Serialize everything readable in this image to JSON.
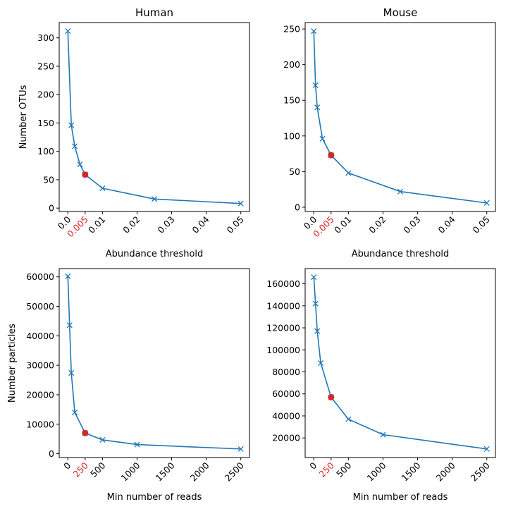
{
  "figure": {
    "background": "#ffffff"
  },
  "chart_data": [
    {
      "id": "human-threshold",
      "type": "line",
      "title": "Human",
      "xlabel": "Abundance threshold",
      "ylabel": "Number OTUs",
      "x": [
        0.0,
        0.001,
        0.002,
        0.0035,
        0.005,
        0.01,
        0.025,
        0.05
      ],
      "series": [
        {
          "values": [
            312,
            146,
            109,
            77,
            59,
            35,
            16,
            8
          ]
        }
      ],
      "highlight": {
        "x": 0.005,
        "y": 59
      },
      "xlim": [
        -0.0025,
        0.0525
      ],
      "ylim": [
        -6,
        327
      ],
      "xticks": [
        0.0,
        0.005,
        0.01,
        0.02,
        0.03,
        0.04,
        0.05
      ],
      "xtick_labels": [
        "0.0",
        "0.005",
        "0.01",
        "0.02",
        "0.03",
        "0.04",
        "0.05"
      ],
      "highlight_tick_label": "0.005",
      "yticks": [
        0,
        50,
        100,
        150,
        200,
        250,
        300
      ],
      "ytick_labels": [
        "0",
        "50",
        "100",
        "150",
        "200",
        "250",
        "300"
      ],
      "grid": false
    },
    {
      "id": "mouse-threshold",
      "type": "line",
      "title": "Mouse",
      "xlabel": "Abundance threshold",
      "ylabel": "",
      "x": [
        0.0,
        0.0005,
        0.001,
        0.0025,
        0.005,
        0.01,
        0.025,
        0.05
      ],
      "series": [
        {
          "values": [
            247,
            171,
            140,
            96,
            73,
            48,
            22,
            6
          ]
        }
      ],
      "highlight": {
        "x": 0.005,
        "y": 73
      },
      "xlim": [
        -0.0025,
        0.0525
      ],
      "ylim": [
        -6,
        259
      ],
      "xticks": [
        0.0,
        0.005,
        0.01,
        0.02,
        0.03,
        0.04,
        0.05
      ],
      "xtick_labels": [
        "0.0",
        "0.005",
        "0.01",
        "0.02",
        "0.03",
        "0.04",
        "0.05"
      ],
      "highlight_tick_label": "0.005",
      "yticks": [
        0,
        50,
        100,
        150,
        200,
        250
      ],
      "ytick_labels": [
        "0",
        "50",
        "100",
        "150",
        "200",
        "250"
      ],
      "grid": false
    },
    {
      "id": "human-reads",
      "type": "line",
      "title": "",
      "xlabel": "Min number of reads",
      "ylabel": "Number particles",
      "x": [
        0,
        25,
        50,
        100,
        250,
        500,
        1000,
        2500
      ],
      "series": [
        {
          "values": [
            60200,
            43600,
            27400,
            14000,
            7000,
            4700,
            3100,
            1600
          ]
        }
      ],
      "highlight": {
        "x": 250,
        "y": 7000
      },
      "xlim": [
        -125,
        2625
      ],
      "ylim": [
        -1300,
        62800
      ],
      "xticks": [
        0,
        250,
        500,
        1000,
        1500,
        2000,
        2500
      ],
      "xtick_labels": [
        "0",
        "250",
        "500",
        "1000",
        "1500",
        "2000",
        "2500"
      ],
      "highlight_tick_label": "250",
      "yticks": [
        0,
        10000,
        20000,
        30000,
        40000,
        50000,
        60000
      ],
      "ytick_labels": [
        "0",
        "10000",
        "20000",
        "30000",
        "40000",
        "50000",
        "60000"
      ],
      "grid": false
    },
    {
      "id": "mouse-reads",
      "type": "line",
      "title": "",
      "xlabel": "Min number of reads",
      "ylabel": "",
      "x": [
        0,
        25,
        50,
        100,
        250,
        500,
        1000,
        2500
      ],
      "series": [
        {
          "values": [
            166000,
            142000,
            117000,
            88000,
            57000,
            37000,
            23000,
            10000
          ]
        }
      ],
      "highlight": {
        "x": 250,
        "y": 57000
      },
      "xlim": [
        -125,
        2625
      ],
      "ylim": [
        2200,
        173800
      ],
      "xticks": [
        0,
        250,
        500,
        1000,
        1500,
        2000,
        2500
      ],
      "xtick_labels": [
        "0",
        "250",
        "500",
        "1000",
        "1500",
        "2000",
        "2500"
      ],
      "highlight_tick_label": "250",
      "yticks": [
        20000,
        40000,
        60000,
        80000,
        100000,
        120000,
        140000,
        160000
      ],
      "ytick_labels": [
        "20000",
        "40000",
        "60000",
        "80000",
        "100000",
        "120000",
        "140000",
        "160000"
      ],
      "grid": false
    }
  ],
  "colors": {
    "line": "#1f77b4",
    "highlight": "#d62728",
    "text": "#000000",
    "axis": "#000000"
  }
}
